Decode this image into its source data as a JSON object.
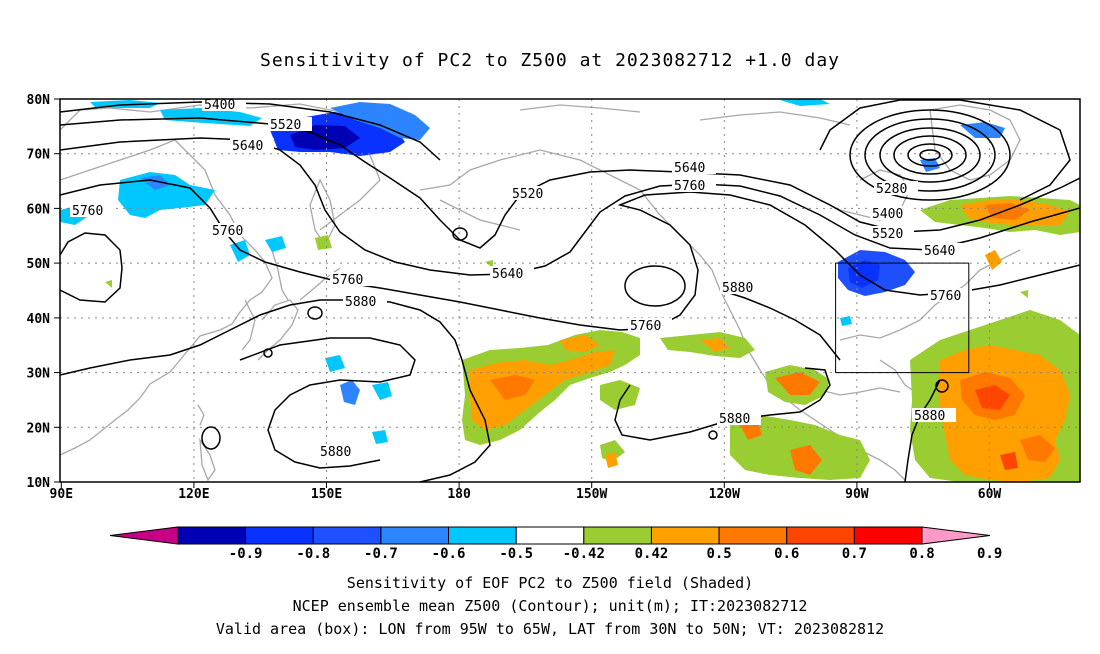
{
  "title": "Sensitivity of PC2 to Z500 at 2023082712 +1.0 day",
  "map": {
    "lat_labels": [
      "80N",
      "70N",
      "60N",
      "50N",
      "40N",
      "30N",
      "20N",
      "10N"
    ],
    "lon_labels": [
      "90E",
      "120E",
      "150E",
      "180",
      "150W",
      "120W",
      "90W",
      "60W"
    ],
    "box_label": "Valid area (box)",
    "contours": [
      {
        "label": "5400",
        "id": "c5400"
      },
      {
        "label": "5520",
        "id": "c5520"
      },
      {
        "label": "5640",
        "id": "c5640"
      },
      {
        "label": "5760",
        "id": "c5760"
      },
      {
        "label": "5880",
        "id": "c5880"
      },
      {
        "label": "5280",
        "id": "c5280"
      }
    ]
  },
  "colorbar": {
    "colors": [
      "#c80085",
      "#0000b4",
      "#0a32ff",
      "#1e50ff",
      "#2c84ff",
      "#00c8ff",
      "#ffffff",
      "#9acd32",
      "#ffa000",
      "#ff7800",
      "#ff4600",
      "#ff0000",
      "#ff9ac8"
    ],
    "ticks": [
      "-0.9",
      "-0.8",
      "-0.7",
      "-0.6",
      "-0.5",
      "-0.42",
      "0.42",
      "0.5",
      "0.6",
      "0.7",
      "0.8",
      "0.9"
    ]
  },
  "captions": [
    "Sensitivity of EOF PC2 to Z500 field (Shaded)",
    "NCEP ensemble mean Z500 (Contour); unit(m); IT:2023082712",
    "Valid area (box): LON from 95W to 65W, LAT from 30N to 50N; VT: 2023082812"
  ]
}
